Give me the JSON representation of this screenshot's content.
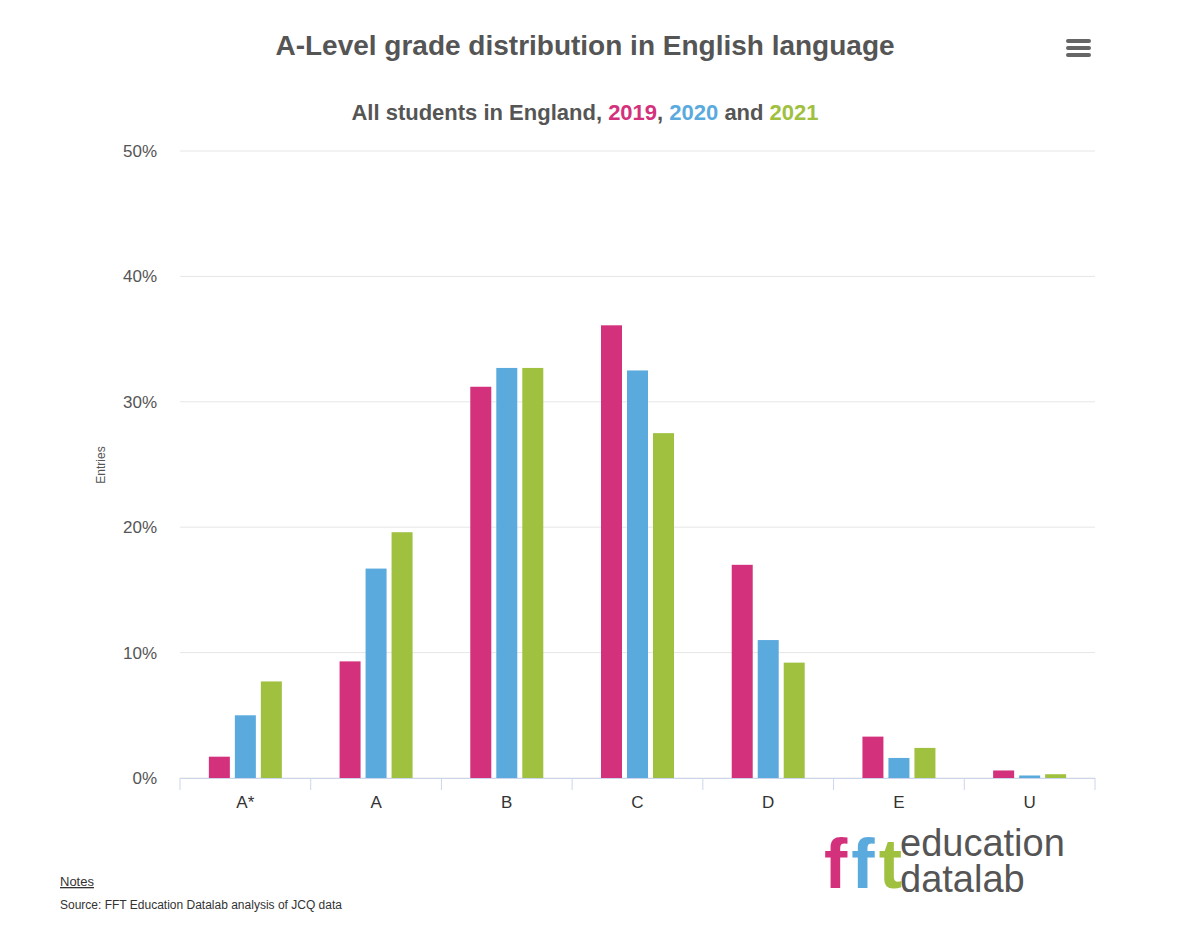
{
  "chart_data": {
    "type": "bar",
    "title": "A-Level grade distribution in English language",
    "subtitle": "All students in England, 2019, 2020 and 2021",
    "y_label": "Entries",
    "categories": [
      "A*",
      "A",
      "B",
      "C",
      "D",
      "E",
      "U"
    ],
    "series": [
      {
        "name": "2019",
        "color": "#d4317d",
        "values": [
          1.7,
          9.3,
          31.2,
          36.1,
          17.0,
          3.3,
          0.6
        ]
      },
      {
        "name": "2020",
        "color": "#5aaade",
        "values": [
          5.0,
          16.7,
          32.7,
          32.5,
          11.0,
          1.6,
          0.2
        ]
      },
      {
        "name": "2021",
        "color": "#a0c040",
        "values": [
          7.7,
          19.6,
          32.7,
          27.5,
          9.2,
          2.4,
          0.3
        ]
      }
    ],
    "ylim": [
      0,
      50
    ],
    "yticks": [
      {
        "value": 0,
        "label": "0%"
      },
      {
        "value": 10,
        "label": "10%"
      },
      {
        "value": 20,
        "label": "20%"
      },
      {
        "value": 30,
        "label": "30%"
      },
      {
        "value": 40,
        "label": "40%"
      },
      {
        "value": 50,
        "label": "50%"
      }
    ],
    "grid": true
  },
  "notes": "Notes",
  "source": "Source: FFT Education Datalab analysis of JCQ data",
  "logo": {
    "mark": "fft",
    "line1": "education",
    "line2": "datalab"
  }
}
